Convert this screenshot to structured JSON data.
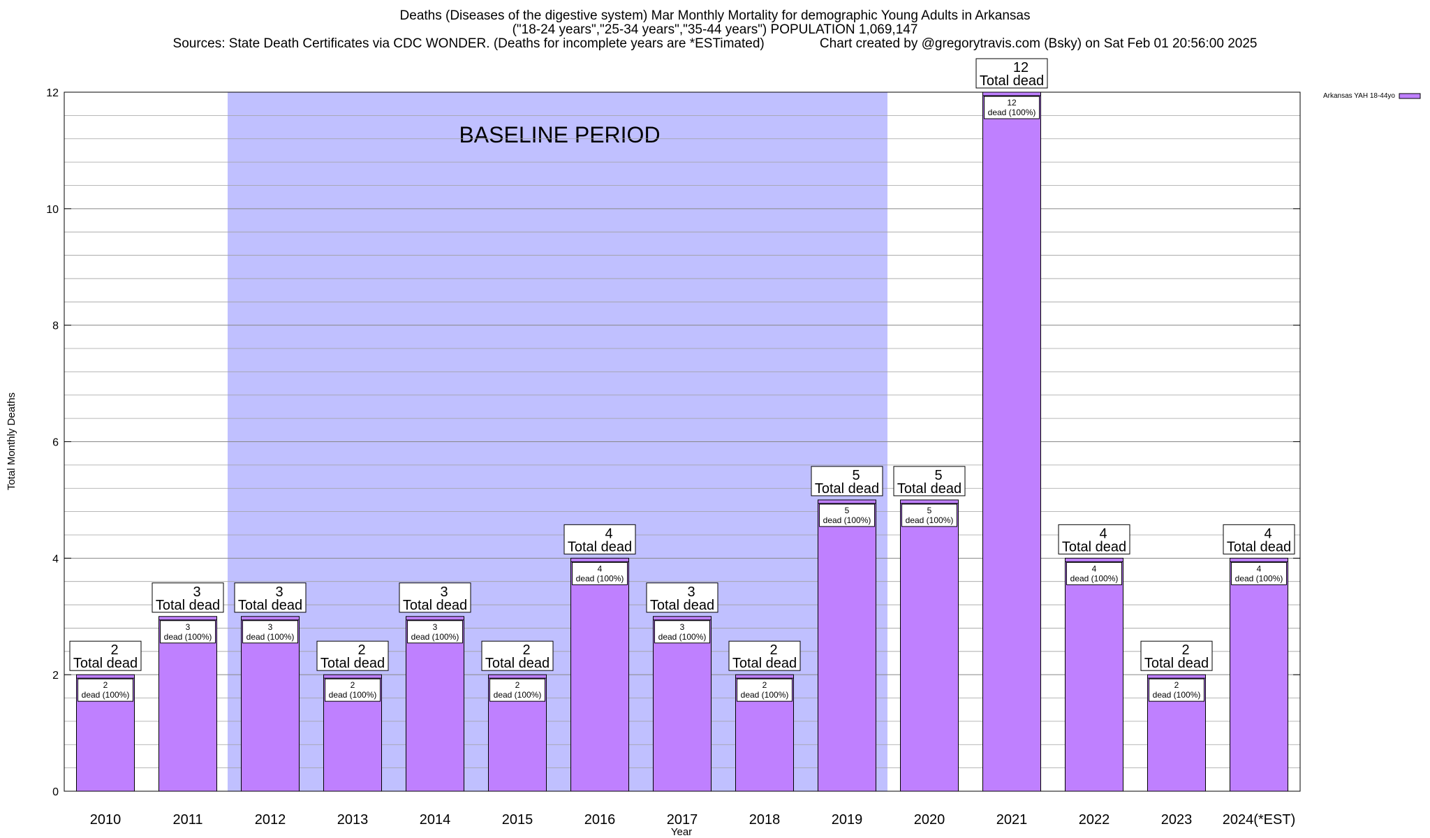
{
  "title_lines": [
    "Deaths (Diseases of the digestive system) Mar Monthly Mortality for demographic Young Adults in Arkansas",
    "(\"18-24 years\",\"25-34 years\",\"35-44 years\") POPULATION 1,069,147",
    "Sources: State Death Certificates via CDC WONDER. (Deaths for incomplete years are *ESTimated)               Chart created by @gregorytravis.com (Bsky) on Sat Feb 01 20:56:00 2025"
  ],
  "chart_data": {
    "type": "bar",
    "categories": [
      "2010",
      "2011",
      "2012",
      "2013",
      "2014",
      "2015",
      "2016",
      "2017",
      "2018",
      "2019",
      "2020",
      "2021",
      "2022",
      "2023",
      "2024(*EST)"
    ],
    "series": [
      {
        "name": "Arkansas YAH 18-44yo",
        "values": [
          2,
          3,
          3,
          2,
          3,
          2,
          4,
          3,
          2,
          5,
          5,
          12,
          4,
          2,
          4
        ]
      }
    ],
    "xlabel": "Year",
    "ylabel": "Total Monthly Deaths",
    "ylim": [
      0,
      12
    ],
    "yticks": [
      0,
      2,
      4,
      6,
      8,
      10,
      12
    ],
    "grid": true,
    "legend_position": "top-right",
    "baseline_period": {
      "label": "BASELINE PERIOD",
      "from": "2012",
      "to": "2019"
    },
    "label_total_suffix": "Total dead",
    "label_inner_suffix": "dead (100%)",
    "colors": {
      "bar": "#bf80ff",
      "baseline_band": "#c0c0ff",
      "grid": "#a0a0a0"
    }
  }
}
